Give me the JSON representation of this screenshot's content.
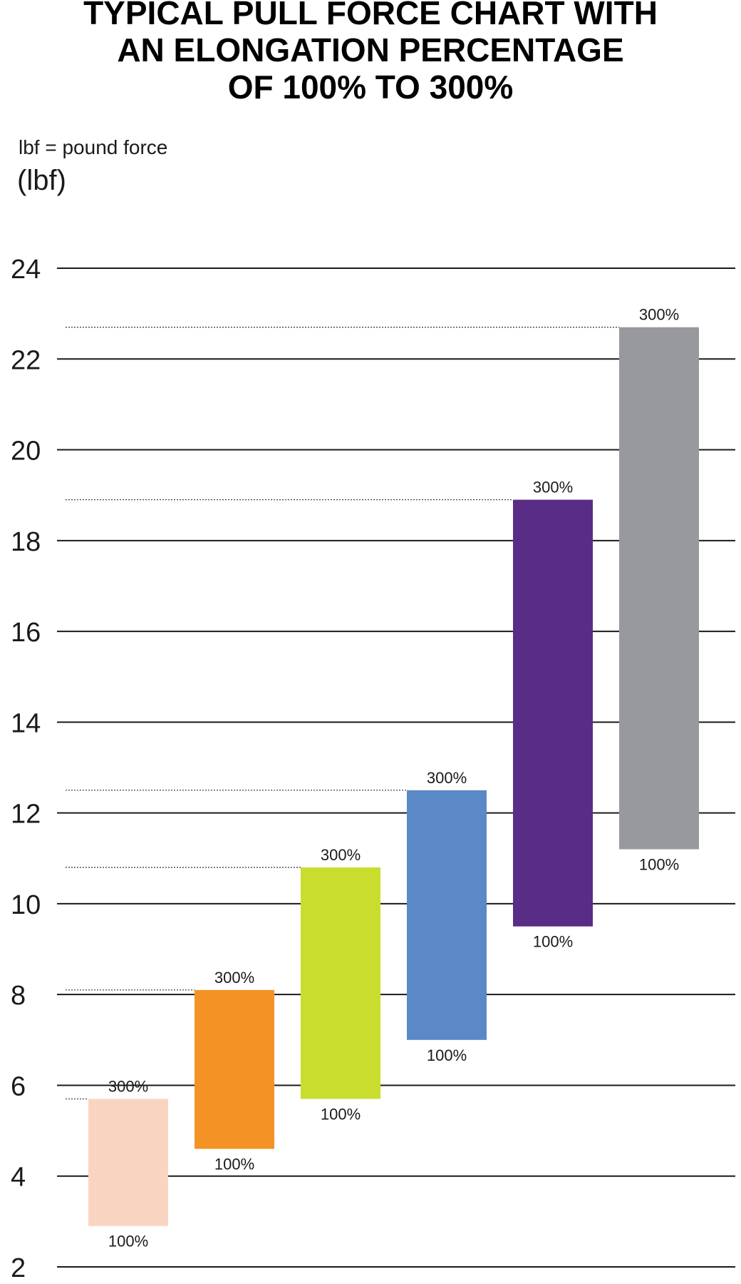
{
  "title_lines": [
    "TYPICAL PULL FORCE CHART WITH",
    "AN ELONGATION PERCENTAGE",
    "OF 100% TO 300%"
  ],
  "note": "lbf = pound force",
  "ylabel": "(lbf)",
  "chart_data": {
    "type": "bar",
    "title": "TYPICAL PULL FORCE CHART WITH AN ELONGATION PERCENTAGE OF 100% TO 300%",
    "ylabel": "(lbf)",
    "yticks": [
      2,
      4,
      6,
      8,
      10,
      12,
      14,
      16,
      18,
      20,
      22,
      24
    ],
    "ylim": [
      2,
      24
    ],
    "grid": true,
    "bar_low_label": "100%",
    "bar_high_label": "300%",
    "ranges": [
      {
        "low": 2.9,
        "high": 5.7,
        "color": "#f9d5c1"
      },
      {
        "low": 4.6,
        "high": 8.1,
        "color": "#f39325"
      },
      {
        "low": 5.7,
        "high": 10.8,
        "color": "#c9dd2e"
      },
      {
        "low": 7.0,
        "high": 12.5,
        "color": "#5b88c6"
      },
      {
        "low": 9.5,
        "high": 18.9,
        "color": "#592d85"
      },
      {
        "low": 11.2,
        "high": 22.7,
        "color": "#98999d"
      }
    ]
  }
}
